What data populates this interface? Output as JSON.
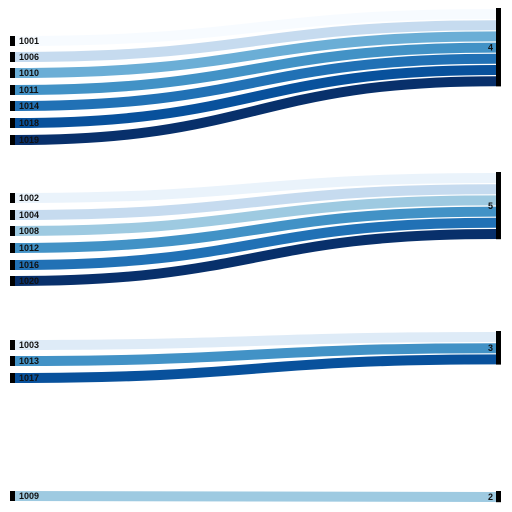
{
  "chart_data": {
    "type": "sankey",
    "title": "",
    "source_nodes": [
      {
        "id": "1001",
        "label": "1001"
      },
      {
        "id": "1006",
        "label": "1006"
      },
      {
        "id": "1010",
        "label": "1010"
      },
      {
        "id": "1011",
        "label": "1011"
      },
      {
        "id": "1014",
        "label": "1014"
      },
      {
        "id": "1018",
        "label": "1018"
      },
      {
        "id": "1019",
        "label": "1019"
      },
      {
        "id": "1002",
        "label": "1002"
      },
      {
        "id": "1004",
        "label": "1004"
      },
      {
        "id": "1008",
        "label": "1008"
      },
      {
        "id": "1012",
        "label": "1012"
      },
      {
        "id": "1016",
        "label": "1016"
      },
      {
        "id": "1020",
        "label": "1020"
      },
      {
        "id": "1003",
        "label": "1003"
      },
      {
        "id": "1013",
        "label": "1013"
      },
      {
        "id": "1017",
        "label": "1017"
      },
      {
        "id": "1009",
        "label": "1009"
      }
    ],
    "target_nodes": [
      {
        "id": "4",
        "label": "4"
      },
      {
        "id": "5",
        "label": "5"
      },
      {
        "id": "3",
        "label": "3"
      },
      {
        "id": "2",
        "label": "2"
      }
    ],
    "links": [
      {
        "source": "1001",
        "target": "4",
        "value": 1,
        "color": "#f7fbff"
      },
      {
        "source": "1006",
        "target": "4",
        "value": 1,
        "color": "#c6dbef"
      },
      {
        "source": "1010",
        "target": "4",
        "value": 1,
        "color": "#6baed6"
      },
      {
        "source": "1011",
        "target": "4",
        "value": 1,
        "color": "#4292c6"
      },
      {
        "source": "1014",
        "target": "4",
        "value": 1,
        "color": "#2171b5"
      },
      {
        "source": "1018",
        "target": "4",
        "value": 1,
        "color": "#08519c"
      },
      {
        "source": "1019",
        "target": "4",
        "value": 1,
        "color": "#08306b"
      },
      {
        "source": "1002",
        "target": "5",
        "value": 1,
        "color": "#eaf3fb"
      },
      {
        "source": "1004",
        "target": "5",
        "value": 1,
        "color": "#c6dbef"
      },
      {
        "source": "1008",
        "target": "5",
        "value": 1,
        "color": "#9ecae1"
      },
      {
        "source": "1012",
        "target": "5",
        "value": 1,
        "color": "#4292c6"
      },
      {
        "source": "1016",
        "target": "5",
        "value": 1,
        "color": "#2171b5"
      },
      {
        "source": "1020",
        "target": "5",
        "value": 1,
        "color": "#08306b"
      },
      {
        "source": "1003",
        "target": "3",
        "value": 1,
        "color": "#deebf7"
      },
      {
        "source": "1013",
        "target": "3",
        "value": 1,
        "color": "#4292c6"
      },
      {
        "source": "1017",
        "target": "3",
        "value": 1,
        "color": "#08519c"
      },
      {
        "source": "1009",
        "target": "2",
        "value": 1,
        "color": "#9ecae1"
      }
    ]
  }
}
